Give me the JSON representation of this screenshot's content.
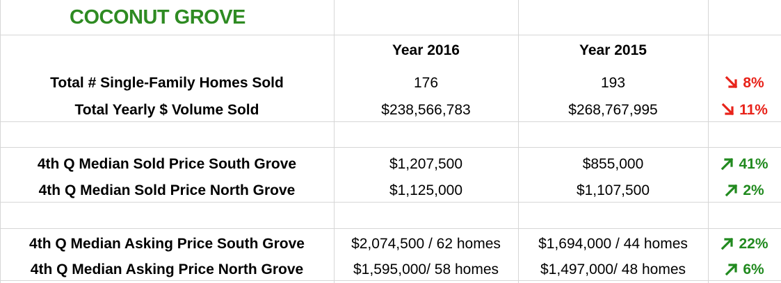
{
  "title": "COCONUT GROVE",
  "columns": {
    "year1": "Year 2016",
    "year2": "Year 2015"
  },
  "colors": {
    "title": "#2e8b22",
    "up": "#218a1f",
    "down": "#e8231a",
    "grid": "#d6d6d6"
  },
  "rows": [
    {
      "label": "Total # Single-Family Homes Sold",
      "y2016": "176",
      "y2015": "193",
      "change": {
        "direction": "down",
        "icon": "arrow-down-right-icon",
        "value": "8%"
      }
    },
    {
      "label": "Total Yearly $ Volume Sold",
      "y2016": "$238,566,783",
      "y2015": "$268,767,995",
      "change": {
        "direction": "down",
        "icon": "arrow-down-right-icon",
        "value": "11%"
      }
    },
    {
      "label": "4th Q Median Sold Price South Grove",
      "y2016": "$1,207,500",
      "y2015": "$855,000",
      "change": {
        "direction": "up",
        "icon": "arrow-up-right-icon",
        "value": "41%"
      }
    },
    {
      "label": "4th Q Median Sold Price North Grove",
      "y2016": "$1,125,000",
      "y2015": "$1,107,500",
      "change": {
        "direction": "up",
        "icon": "arrow-up-right-icon",
        "value": "2%"
      }
    },
    {
      "label": "4th Q Median Asking Price South Grove",
      "y2016": "$2,074,500 / 62 homes",
      "y2015": "$1,694,000 / 44 homes",
      "change": {
        "direction": "up",
        "icon": "arrow-up-right-icon",
        "value": "22%"
      }
    },
    {
      "label": "4th Q Median Asking  Price North Grove",
      "y2016": "$1,595,000/ 58 homes",
      "y2015": "$1,497,000/ 48 homes",
      "change": {
        "direction": "up",
        "icon": "arrow-up-right-icon",
        "value": "6%"
      }
    }
  ]
}
